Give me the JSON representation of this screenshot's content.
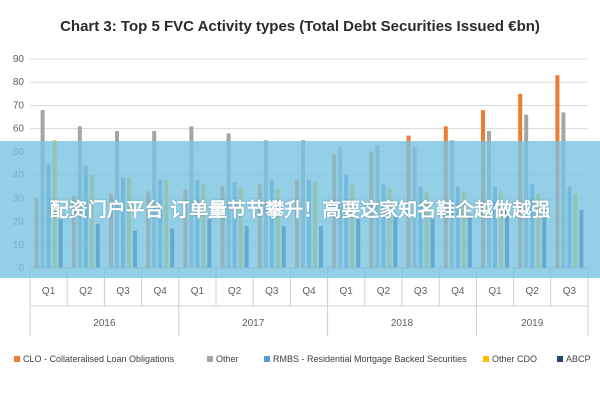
{
  "chart_data": {
    "type": "bar",
    "title": "Chart 3: Top 5 FVC Activity types (Total Debt Securities Issued €bn)",
    "xlabel": "",
    "ylabel": "",
    "ylim": [
      0,
      90
    ],
    "yticks": [
      0,
      10,
      20,
      30,
      40,
      50,
      60,
      70,
      80,
      90
    ],
    "grid": true,
    "legend_position": "bottom",
    "categories": [
      "Q1",
      "Q2",
      "Q3",
      "Q4",
      "Q1",
      "Q2",
      "Q3",
      "Q4",
      "Q1",
      "Q2",
      "Q3",
      "Q4",
      "Q1",
      "Q2",
      "Q3"
    ],
    "year_groups": [
      {
        "label": "2016",
        "count": 4
      },
      {
        "label": "2017",
        "count": 4
      },
      {
        "label": "2018",
        "count": 4
      },
      {
        "label": "2019",
        "count": 3
      }
    ],
    "series": [
      {
        "name": "CLO - Collateralised Loan Obligations",
        "color": "#ed7d31",
        "values": [
          30,
          31,
          32,
          33,
          34,
          35,
          36,
          38,
          49,
          50,
          57,
          61,
          68,
          75,
          83
        ]
      },
      {
        "name": "Other",
        "color": "#a5a5a5",
        "values": [
          68,
          61,
          59,
          59,
          61,
          58,
          55,
          55,
          52,
          53,
          52,
          55,
          59,
          66,
          67
        ]
      },
      {
        "name": "RMBS - Residential Mortgage Backed Securities",
        "color": "#5b9bd5",
        "values": [
          45,
          44,
          39,
          38,
          38,
          37,
          38,
          38,
          40,
          36,
          35,
          35,
          35,
          36,
          35
        ]
      },
      {
        "name": "Other CDO",
        "color": "#ffc000",
        "values": [
          55,
          40,
          39,
          38,
          36,
          35,
          34,
          37,
          36,
          34,
          33,
          33,
          33,
          32,
          32
        ]
      },
      {
        "name": "ABCP",
        "color": "#264478",
        "values": [
          21,
          19,
          16,
          17,
          21,
          18,
          18,
          18,
          21,
          22,
          22,
          23,
          25,
          26,
          25
        ]
      }
    ]
  },
  "overlay": {
    "text": "配资门户平台 订单量节节攀升！高要这家知名鞋企越做越强"
  }
}
